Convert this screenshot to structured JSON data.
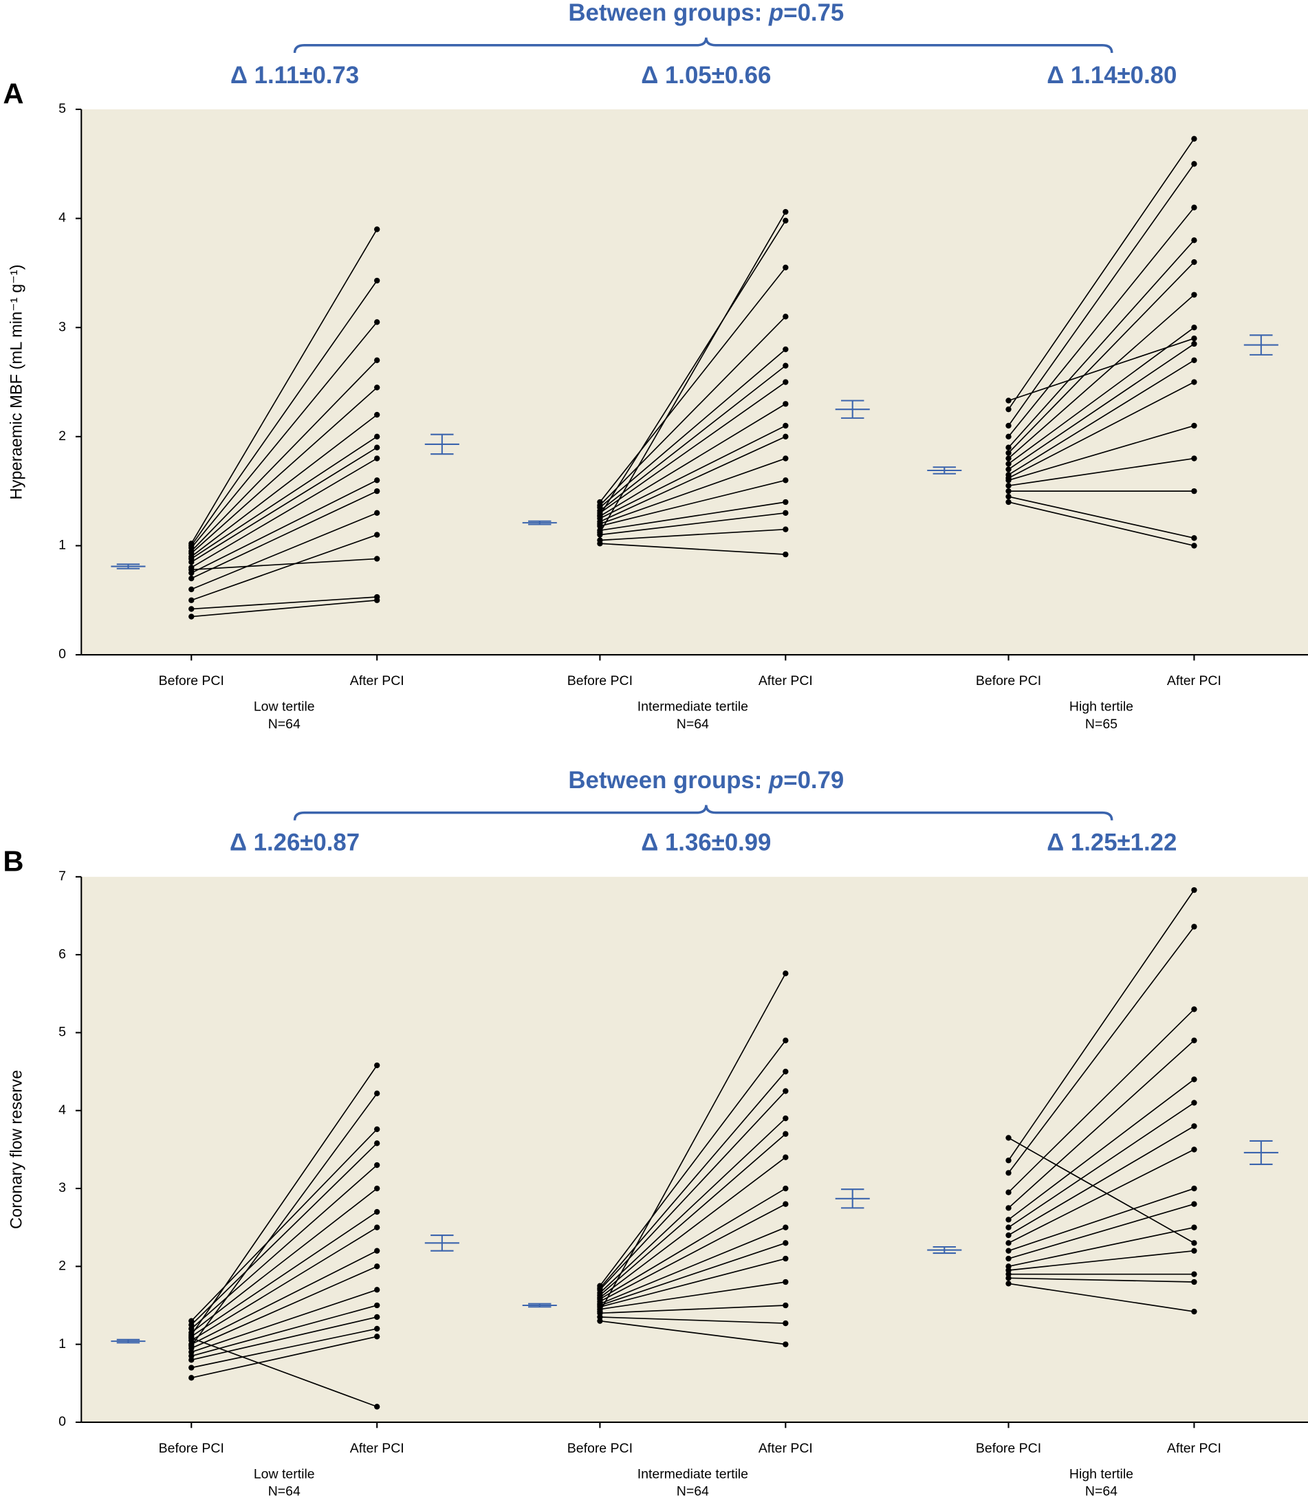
{
  "chart_data": [
    {
      "type": "paired-dot",
      "panel_label": "A",
      "between_prefix": "Between groups: ",
      "between_p": "p",
      "between_value": "=0.75",
      "y_label": "Hyperaemic MBF (mL min⁻¹ g⁻¹)",
      "ylim": [
        0,
        5
      ],
      "yticks": [
        0,
        1,
        2,
        3,
        4,
        5
      ],
      "background": "#efebdc",
      "summary_color": "#3b64ad",
      "point_color": "#000000",
      "groups": [
        {
          "name": "Low tertile",
          "n_label": "N=64",
          "delta": "Δ 1.11±0.73",
          "categories": [
            "Before PCI",
            "After PCI"
          ],
          "before": [
            0.35,
            0.42,
            0.5,
            0.6,
            0.7,
            0.75,
            0.8,
            0.85,
            0.88,
            0.9,
            0.93,
            0.95,
            0.98,
            1.0,
            1.02,
            0.78
          ],
          "after": [
            0.5,
            0.53,
            1.1,
            1.3,
            1.5,
            1.6,
            1.8,
            1.9,
            2.0,
            2.2,
            2.45,
            2.7,
            3.05,
            3.43,
            3.9,
            0.88
          ],
          "before_mean": 0.81,
          "before_error": 0.02,
          "after_mean": 1.93,
          "after_error": 0.09
        },
        {
          "name": "Intermediate tertile",
          "n_label": "N=64",
          "delta": "Δ 1.05±0.66",
          "categories": [
            "Before PCI",
            "After PCI"
          ],
          "before": [
            1.02,
            1.05,
            1.1,
            1.14,
            1.18,
            1.2,
            1.22,
            1.25,
            1.27,
            1.3,
            1.32,
            1.35,
            1.37,
            1.4,
            1.12,
            1.28
          ],
          "after": [
            0.92,
            1.15,
            1.3,
            1.4,
            1.6,
            1.8,
            2.0,
            2.1,
            2.3,
            2.5,
            2.65,
            2.8,
            3.1,
            3.55,
            4.06,
            3.98
          ],
          "before_mean": 1.21,
          "before_error": 0.015,
          "after_mean": 2.25,
          "after_error": 0.08
        },
        {
          "name": "High tertile",
          "n_label": "N=65",
          "delta": "Δ 1.14±0.80",
          "categories": [
            "Before PCI",
            "After PCI"
          ],
          "before": [
            1.4,
            1.45,
            1.5,
            1.55,
            1.6,
            1.62,
            1.65,
            1.7,
            1.75,
            1.8,
            1.85,
            1.9,
            2.0,
            2.1,
            2.25,
            2.33
          ],
          "after": [
            1.0,
            1.07,
            1.5,
            1.8,
            2.1,
            2.5,
            2.7,
            2.85,
            3.0,
            3.3,
            3.6,
            3.8,
            4.1,
            4.5,
            4.73,
            2.9
          ],
          "before_mean": 1.69,
          "before_error": 0.03,
          "after_mean": 2.84,
          "after_error": 0.09
        }
      ]
    },
    {
      "type": "paired-dot",
      "panel_label": "B",
      "between_prefix": "Between groups: ",
      "between_p": "p",
      "between_value": "=0.79",
      "y_label": "Coronary flow reserve",
      "ylim": [
        0,
        7
      ],
      "yticks": [
        0,
        1,
        2,
        3,
        4,
        5,
        6,
        7
      ],
      "background": "#efebdc",
      "summary_color": "#3b64ad",
      "point_color": "#000000",
      "groups": [
        {
          "name": "Low tertile",
          "n_label": "N=64",
          "delta": "Δ 1.26±0.87",
          "categories": [
            "Before PCI",
            "After PCI"
          ],
          "before": [
            0.57,
            0.7,
            0.8,
            0.85,
            0.9,
            0.95,
            1.0,
            1.05,
            1.1,
            1.15,
            1.2,
            1.25,
            1.3,
            0.98,
            1.12,
            1.08
          ],
          "after": [
            1.1,
            1.2,
            1.35,
            1.5,
            1.7,
            2.0,
            2.2,
            2.5,
            2.7,
            3.0,
            3.3,
            3.58,
            3.76,
            4.22,
            4.58,
            0.2
          ],
          "before_mean": 1.04,
          "before_error": 0.02,
          "after_mean": 2.3,
          "after_error": 0.1
        },
        {
          "name": "Intermediate tertile",
          "n_label": "N=64",
          "delta": "Δ 1.36±0.99",
          "categories": [
            "Before PCI",
            "After PCI"
          ],
          "before": [
            1.3,
            1.35,
            1.4,
            1.45,
            1.48,
            1.5,
            1.52,
            1.55,
            1.58,
            1.6,
            1.63,
            1.66,
            1.7,
            1.72,
            1.75,
            1.42
          ],
          "after": [
            1.0,
            1.27,
            1.5,
            1.8,
            2.1,
            2.3,
            2.5,
            2.8,
            3.0,
            3.4,
            3.7,
            3.9,
            4.25,
            4.5,
            4.9,
            5.76
          ],
          "before_mean": 1.5,
          "before_error": 0.02,
          "after_mean": 2.87,
          "after_error": 0.12
        },
        {
          "name": "High tertile",
          "n_label": "N=64",
          "delta": "Δ 1.25±1.22",
          "categories": [
            "Before PCI",
            "After PCI"
          ],
          "before": [
            1.78,
            1.85,
            1.9,
            1.95,
            2.0,
            2.1,
            2.2,
            2.3,
            2.4,
            2.5,
            2.6,
            2.75,
            2.95,
            3.2,
            3.36,
            3.65
          ],
          "after": [
            1.42,
            1.8,
            1.9,
            2.2,
            2.5,
            2.8,
            3.0,
            3.5,
            3.8,
            4.1,
            4.4,
            4.9,
            5.3,
            6.36,
            6.83,
            2.3
          ],
          "before_mean": 2.21,
          "before_error": 0.04,
          "after_mean": 3.46,
          "after_error": 0.15
        }
      ]
    }
  ]
}
